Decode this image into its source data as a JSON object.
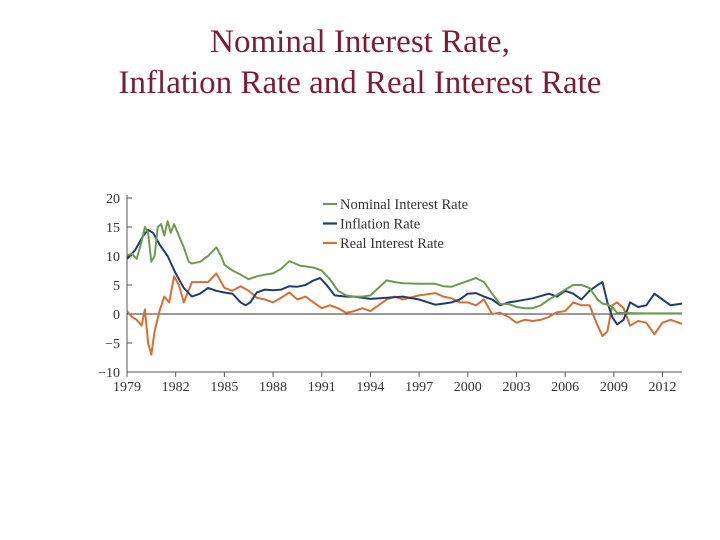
{
  "slide": {
    "title_line1": "Nominal Interest Rate,",
    "title_line2": "Inflation Rate and Real Interest Rate"
  },
  "chart_data": {
    "type": "line",
    "title": "",
    "xlabel": "",
    "ylabel": "",
    "xlim": [
      1979,
      2013.2
    ],
    "ylim": [
      -10,
      20
    ],
    "x_ticks": [
      1979,
      1982,
      1985,
      1988,
      1991,
      1994,
      1997,
      2000,
      2003,
      2006,
      2009,
      2012
    ],
    "y_ticks": [
      20,
      15,
      10,
      5,
      0,
      -5,
      -10
    ],
    "y_tick_labels": [
      "20",
      "15",
      "10",
      "5",
      "0",
      "−5",
      "−10"
    ],
    "zero_line": true,
    "grid": false,
    "legend_position": "top-center",
    "series": [
      {
        "name": "Nominal Interest Rate",
        "color": "#6f9a4f",
        "x": [
          1979,
          1979.3,
          1979.6,
          1979.9,
          1980.1,
          1980.3,
          1980.5,
          1980.7,
          1980.9,
          1981.1,
          1981.3,
          1981.5,
          1981.7,
          1981.9,
          1982.2,
          1982.5,
          1982.8,
          1983,
          1983.5,
          1984,
          1984.5,
          1984.8,
          1985,
          1985.5,
          1986,
          1986.5,
          1987,
          1987.5,
          1988,
          1988.5,
          1989,
          1989.3,
          1989.7,
          1990,
          1990.5,
          1991,
          1991.5,
          1992,
          1992.5,
          1993,
          1993.5,
          1994,
          1994.5,
          1995,
          1995.5,
          1996,
          1997,
          1998,
          1998.5,
          1999,
          1999.5,
          2000,
          2000.5,
          2001,
          2001.5,
          2002,
          2002.5,
          2003,
          2003.5,
          2004,
          2004.5,
          2005,
          2005.5,
          2006,
          2006.5,
          2007,
          2007.5,
          2008,
          2008.3,
          2008.6,
          2008.9,
          2009.2,
          2010,
          2011,
          2012,
          2013.2
        ],
        "values": [
          10.1,
          10.4,
          9.5,
          12.5,
          15.0,
          14.0,
          9.0,
          10.0,
          15.0,
          15.5,
          13.5,
          16.0,
          14.0,
          15.5,
          13.5,
          11.5,
          9.0,
          8.7,
          9.0,
          10.0,
          11.5,
          10.0,
          8.5,
          7.5,
          6.8,
          6.0,
          6.5,
          6.8,
          7.0,
          7.8,
          9.1,
          8.8,
          8.3,
          8.2,
          8.0,
          7.5,
          6.0,
          4.0,
          3.2,
          3.0,
          3.0,
          3.2,
          4.5,
          5.8,
          5.5,
          5.3,
          5.2,
          5.2,
          4.8,
          4.7,
          5.2,
          5.7,
          6.2,
          5.5,
          3.5,
          1.7,
          1.7,
          1.2,
          1.0,
          1.0,
          1.5,
          2.5,
          3.3,
          4.2,
          5.0,
          5.0,
          4.5,
          2.5,
          1.8,
          1.6,
          1.2,
          0.2,
          0.15,
          0.1,
          0.1,
          0.1
        ]
      },
      {
        "name": "Inflation Rate",
        "color": "#1f3d73",
        "x": [
          1979,
          1979.5,
          1980,
          1980.3,
          1980.6,
          1981,
          1981.5,
          1982,
          1982.5,
          1983,
          1983.5,
          1984,
          1984.5,
          1985,
          1985.5,
          1986,
          1986.3,
          1986.6,
          1987,
          1987.5,
          1988,
          1988.5,
          1989,
          1989.5,
          1990,
          1990.5,
          1990.9,
          1991.3,
          1991.8,
          1992.5,
          1993,
          1994,
          1995,
          1996,
          1997,
          1998,
          1998.5,
          1999,
          1999.5,
          2000,
          2000.5,
          2001,
          2001.5,
          2002,
          2002.5,
          2003,
          2004,
          2005,
          2005.5,
          2006,
          2006.5,
          2007,
          2007.5,
          2008,
          2008.3,
          2008.6,
          2008.9,
          2009.2,
          2009.6,
          2010,
          2010.5,
          2011,
          2011.5,
          2012,
          2012.5,
          2013.2
        ],
        "values": [
          9.5,
          11.0,
          13.5,
          14.5,
          14.0,
          12.0,
          10.0,
          7.0,
          4.5,
          3.0,
          3.5,
          4.5,
          4.0,
          3.7,
          3.5,
          2.0,
          1.5,
          2.0,
          3.7,
          4.2,
          4.1,
          4.2,
          4.8,
          4.7,
          5.0,
          5.8,
          6.2,
          5.0,
          3.2,
          3.0,
          3.0,
          2.6,
          2.8,
          3.0,
          2.5,
          1.6,
          1.8,
          2.0,
          2.5,
          3.5,
          3.6,
          3.0,
          2.5,
          1.5,
          2.0,
          2.2,
          2.7,
          3.5,
          3.0,
          4.0,
          3.5,
          2.5,
          4.0,
          5.0,
          5.5,
          2.0,
          -0.5,
          -1.8,
          -1.0,
          2.0,
          1.2,
          1.5,
          3.5,
          2.5,
          1.5,
          1.8
        ]
      },
      {
        "name": "Real Interest Rate",
        "color": "#d46f35",
        "x": [
          1979,
          1979.3,
          1979.6,
          1979.9,
          1980.1,
          1980.3,
          1980.5,
          1980.7,
          1981,
          1981.3,
          1981.6,
          1981.9,
          1982.2,
          1982.5,
          1983,
          1983.5,
          1984,
          1984.5,
          1985,
          1985.5,
          1986,
          1986.5,
          1987,
          1987.5,
          1988,
          1988.5,
          1989,
          1989.5,
          1990,
          1990.5,
          1991,
          1991.5,
          1992,
          1992.5,
          1993,
          1993.5,
          1994,
          1995,
          1995.5,
          1996,
          1997,
          1998,
          1998.5,
          1999,
          1999.5,
          2000,
          2000.5,
          2001,
          2001.5,
          2002,
          2002.5,
          2003,
          2003.5,
          2004,
          2004.5,
          2005,
          2005.5,
          2006,
          2006.5,
          2007,
          2007.5,
          2008,
          2008.3,
          2008.6,
          2008.9,
          2009.2,
          2009.6,
          2010,
          2010.5,
          2011,
          2011.5,
          2012,
          2012.5,
          2013.2
        ],
        "values": [
          0.5,
          -0.5,
          -1.0,
          -2.0,
          0.8,
          -5.0,
          -7.0,
          -3.0,
          0.5,
          3.0,
          2.0,
          6.5,
          5.0,
          2.0,
          5.5,
          5.5,
          5.5,
          7.0,
          4.5,
          4.0,
          4.8,
          4.0,
          2.8,
          2.5,
          2.0,
          2.8,
          3.7,
          2.5,
          3.0,
          2.0,
          1.0,
          1.5,
          1.0,
          0.2,
          0.5,
          1.0,
          0.5,
          2.5,
          3.0,
          2.5,
          3.2,
          3.6,
          3.0,
          2.7,
          2.0,
          2.0,
          1.5,
          2.5,
          0.0,
          0.2,
          -0.5,
          -1.5,
          -1.0,
          -1.2,
          -1.0,
          -0.5,
          0.3,
          0.5,
          2.0,
          1.5,
          1.5,
          -2.0,
          -3.8,
          -3.0,
          1.5,
          2.0,
          1.0,
          -2.0,
          -1.2,
          -1.5,
          -3.5,
          -1.5,
          -1.0,
          -1.7
        ]
      }
    ]
  }
}
